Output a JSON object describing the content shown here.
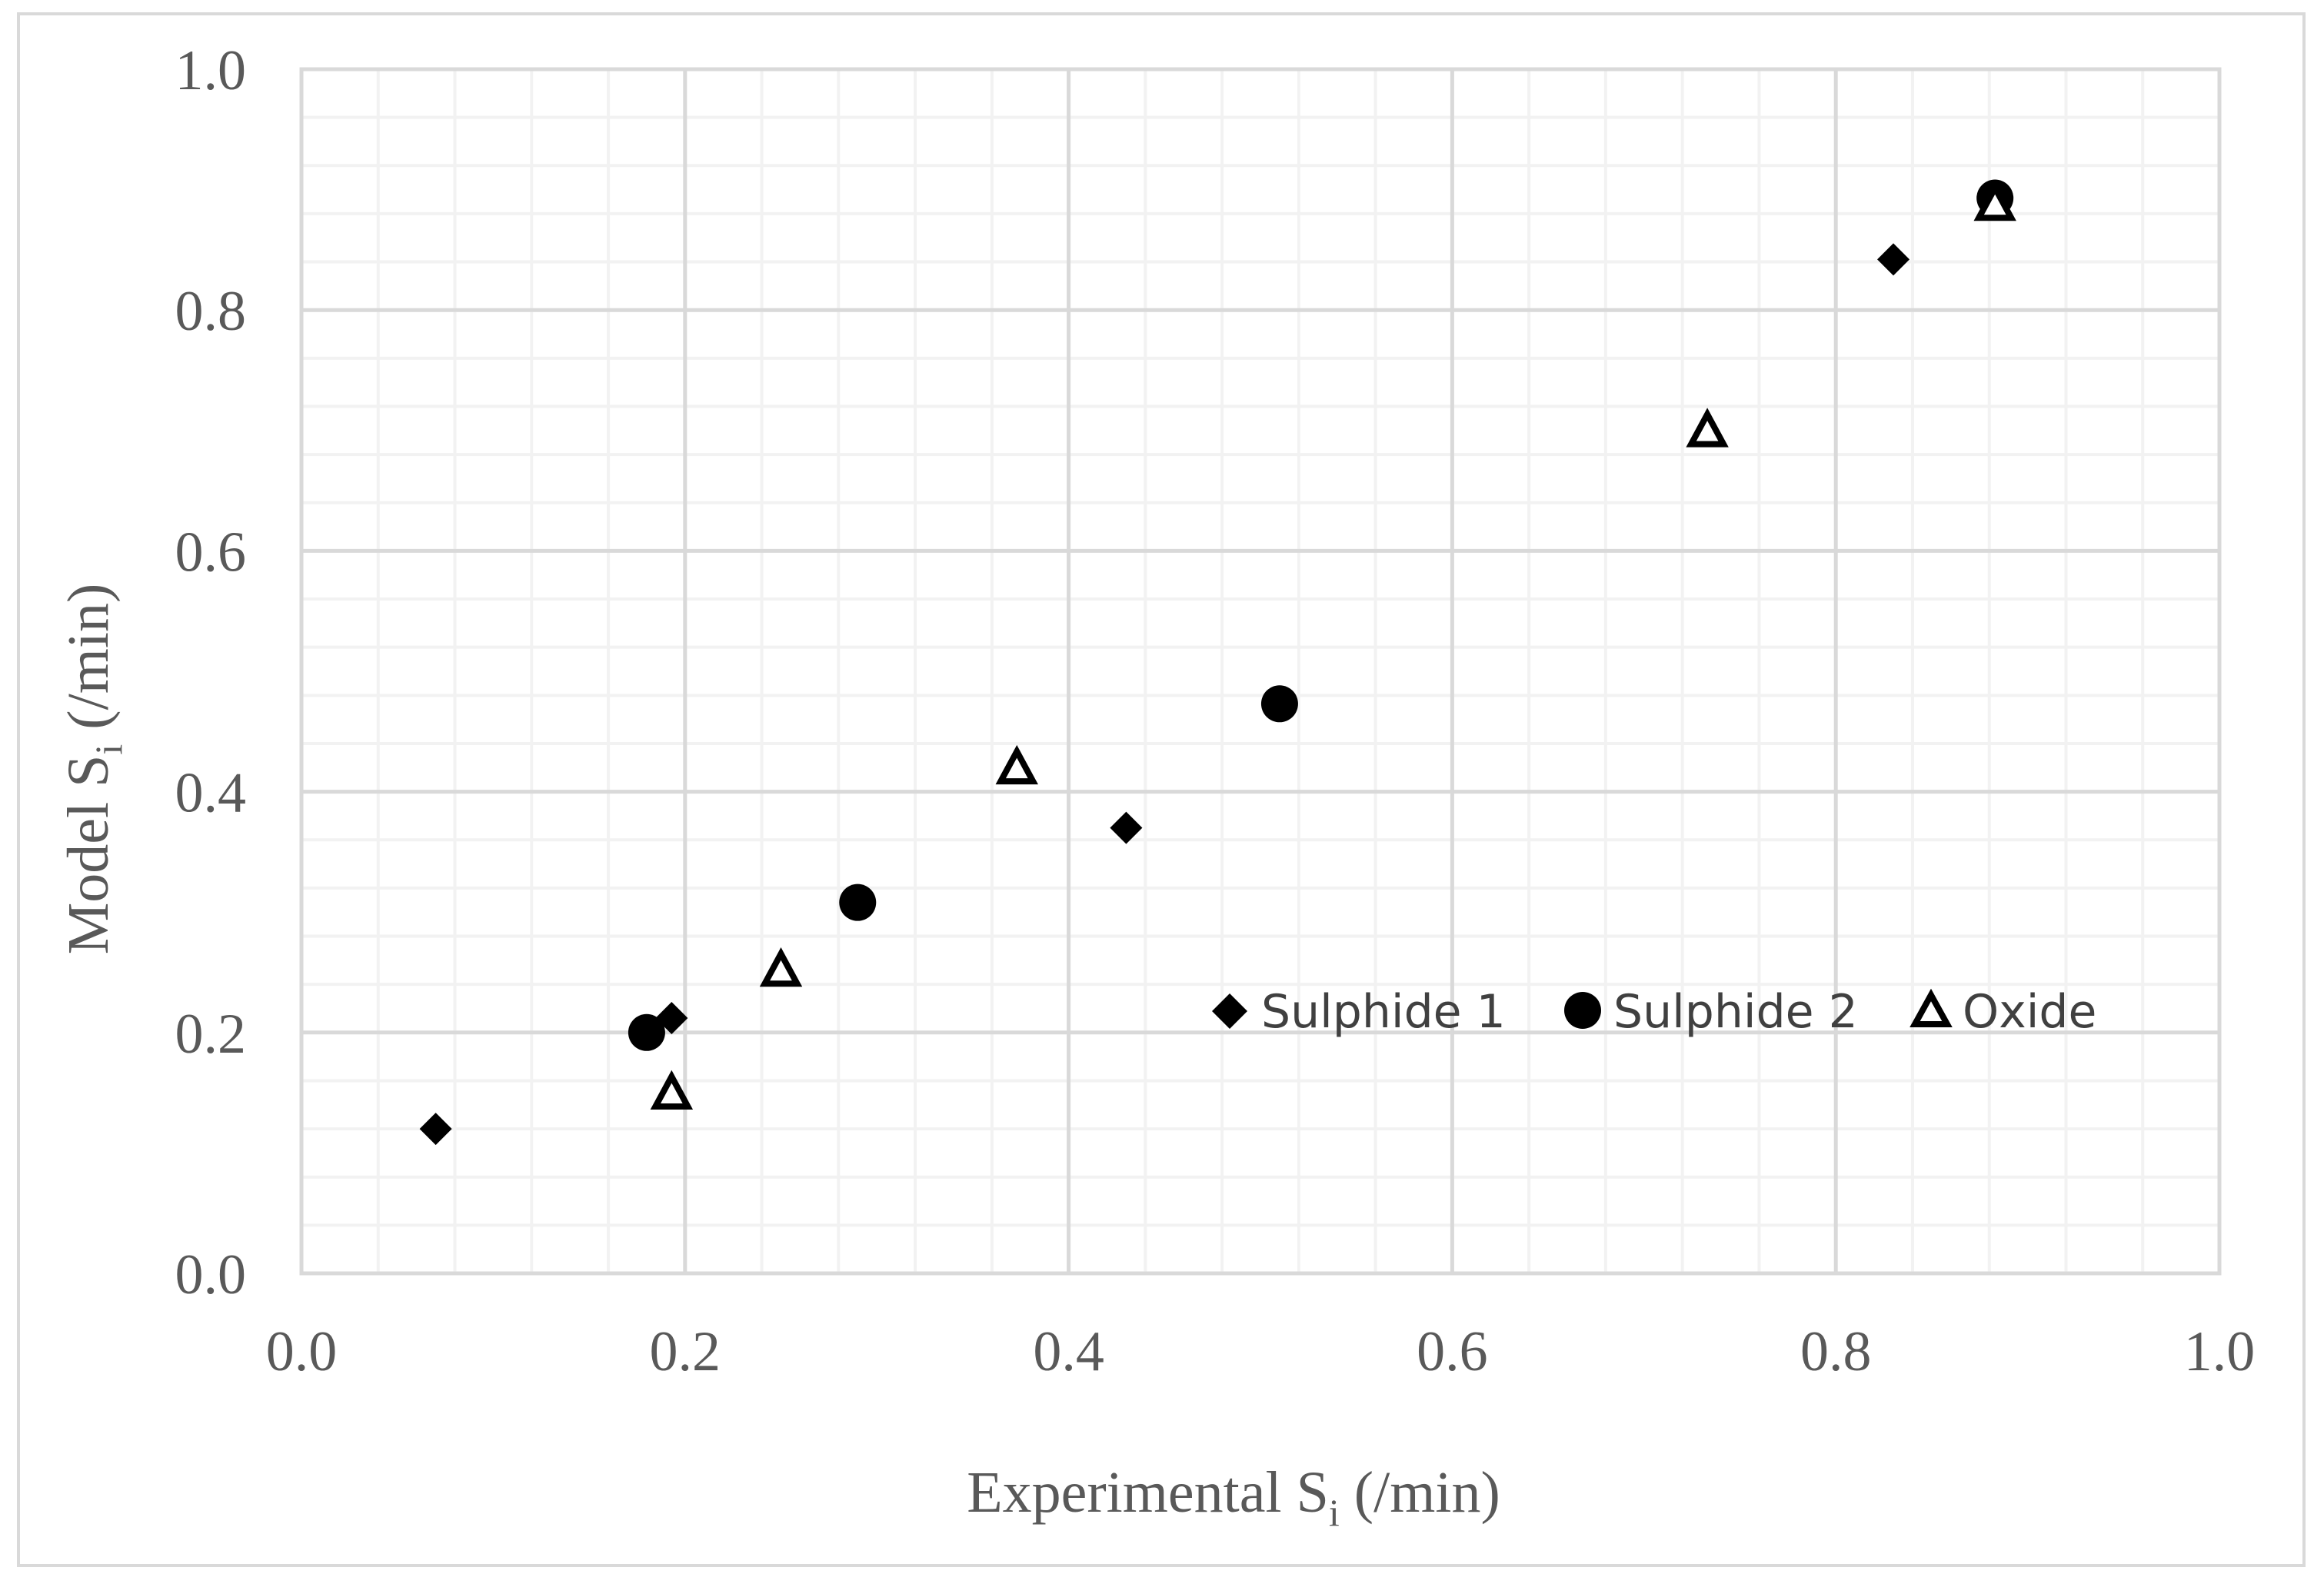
{
  "chart_data": {
    "type": "scatter",
    "title": "",
    "xlabel": {
      "main": "Experimental S",
      "sub": "i",
      "unit": " (/min)"
    },
    "ylabel": {
      "main": "Model S",
      "sub": "i",
      "unit": " (/min)"
    },
    "xlim": [
      0.0,
      1.0
    ],
    "ylim": [
      0.0,
      1.0
    ],
    "major_step": 0.2,
    "minor_step": 0.04,
    "x_ticks": [
      "0.0",
      "0.2",
      "0.4",
      "0.6",
      "0.8",
      "1.0"
    ],
    "y_ticks": [
      "0.0",
      "0.2",
      "0.4",
      "0.6",
      "0.8",
      "1.0"
    ],
    "grid": true,
    "legend_position": "right, inside plot near y=0.22",
    "series": [
      {
        "name": "Sulphide 1",
        "marker": "diamond",
        "color": "#000000",
        "points": [
          {
            "x": 0.07,
            "y": 0.12
          },
          {
            "x": 0.193,
            "y": 0.212
          },
          {
            "x": 0.43,
            "y": 0.37
          },
          {
            "x": 0.83,
            "y": 0.842
          }
        ]
      },
      {
        "name": "Sulphide 2",
        "marker": "circle",
        "color": "#000000",
        "points": [
          {
            "x": 0.18,
            "y": 0.2
          },
          {
            "x": 0.29,
            "y": 0.308
          },
          {
            "x": 0.51,
            "y": 0.473
          },
          {
            "x": 0.883,
            "y": 0.893
          }
        ]
      },
      {
        "name": "Oxide",
        "marker": "triangle-open",
        "color": "#000000",
        "points": [
          {
            "x": 0.193,
            "y": 0.15
          },
          {
            "x": 0.25,
            "y": 0.252
          },
          {
            "x": 0.373,
            "y": 0.42
          },
          {
            "x": 0.733,
            "y": 0.7
          },
          {
            "x": 0.883,
            "y": 0.888
          }
        ]
      }
    ]
  },
  "colors": {
    "major_grid": "#d9d9d9",
    "minor_grid": "#f2f2f2",
    "axis_text": "#595959",
    "marker": "#000000"
  }
}
